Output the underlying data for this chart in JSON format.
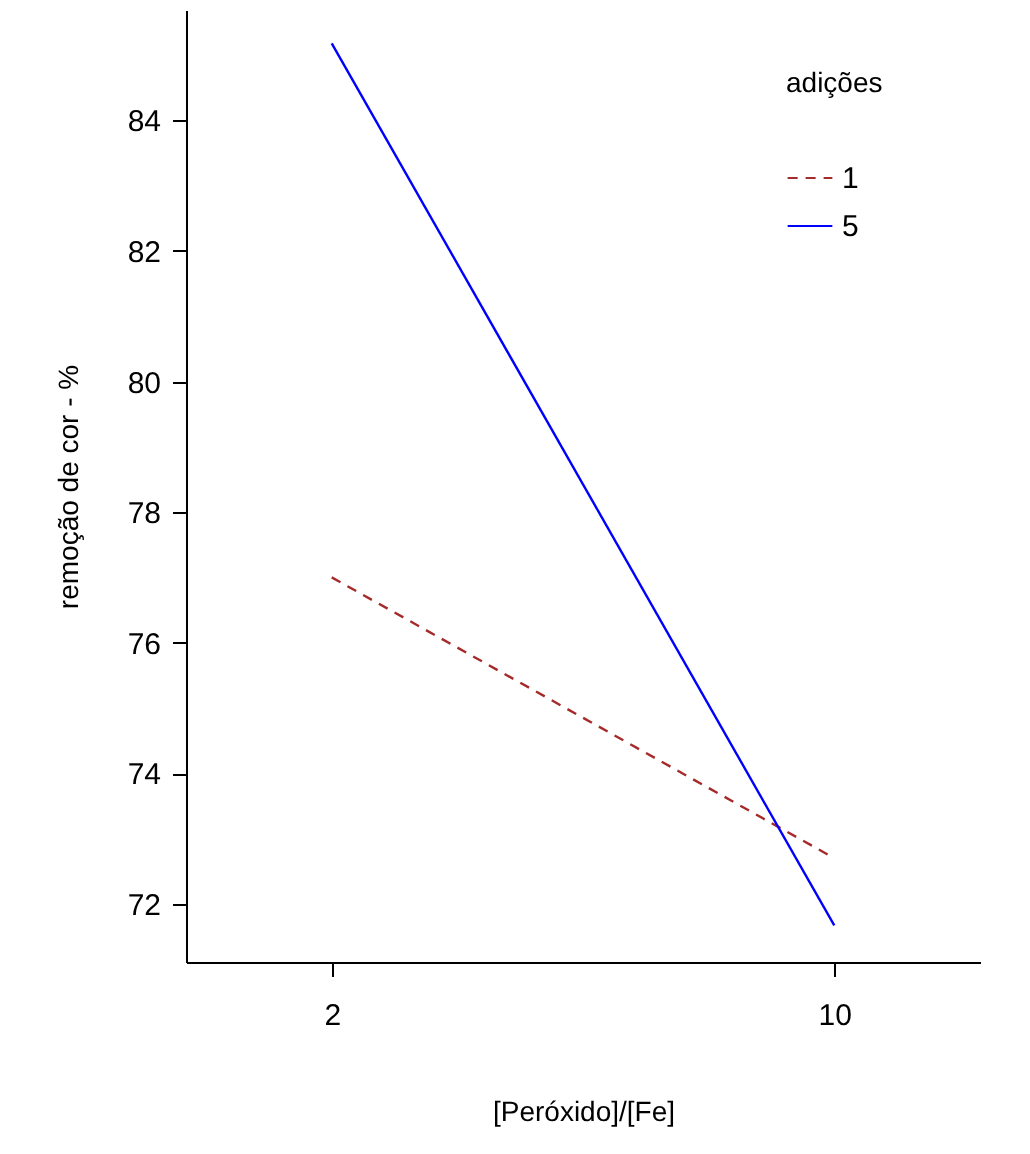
{
  "chart_data": {
    "type": "line",
    "xlabel": "[Peróxido]/[Fe]",
    "ylabel": "remoção de cor - %",
    "legend_title": "adições",
    "categories": [
      "2",
      "10"
    ],
    "series": [
      {
        "name": "1",
        "color": "#a52a2a",
        "line_style": "dashed",
        "values": [
          77.0,
          72.7
        ]
      },
      {
        "name": "5",
        "color": "#0000ff",
        "line_style": "solid",
        "values": [
          85.18,
          71.67
        ]
      }
    ],
    "ylim": [
      71.11,
      85.69
    ],
    "yticks": [
      72,
      74,
      76,
      78,
      80,
      82,
      84
    ],
    "grid": false,
    "legend": "top right",
    "marker": "none"
  }
}
